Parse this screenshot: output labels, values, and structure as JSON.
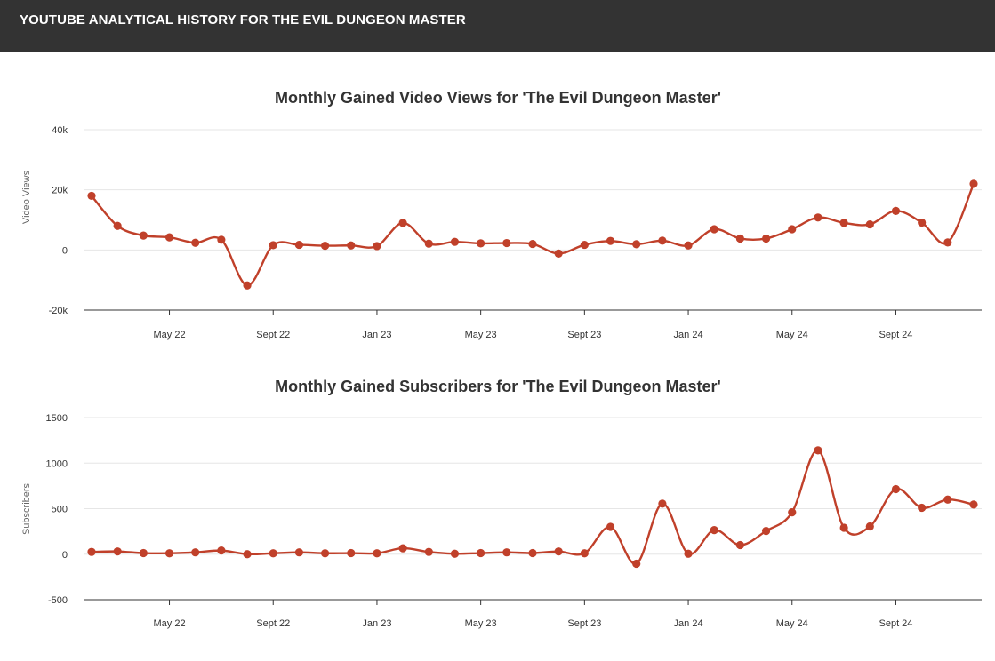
{
  "header": {
    "title": "YOUTUBE ANALYTICAL HISTORY FOR THE EVIL DUNGEON MASTER"
  },
  "colors": {
    "header_bg": "#333333",
    "series": "#c0402a",
    "grid": "#e6e6e6",
    "axis": "#333333"
  },
  "chart_data": [
    {
      "type": "line",
      "title": "Monthly Gained Video Views for 'The Evil Dungeon Master'",
      "xlabel": "",
      "ylabel": "Video Views",
      "ylim": [
        -20000,
        40000
      ],
      "yticks": [
        -20000,
        0,
        20000,
        40000
      ],
      "ytick_labels": [
        "-20k",
        "0",
        "20k",
        "40k"
      ],
      "xtick_labels": [
        "May 22",
        "Sept 22",
        "Jan 23",
        "May 23",
        "Sept 23",
        "Jan 24",
        "May 24",
        "Sept 24"
      ],
      "xtick_months": [
        "2022-05",
        "2022-09",
        "2023-01",
        "2023-05",
        "2023-09",
        "2024-01",
        "2024-05",
        "2024-09"
      ],
      "grid": true,
      "legend": "none",
      "x": [
        "2022-02",
        "2022-03",
        "2022-04",
        "2022-05",
        "2022-06",
        "2022-07",
        "2022-08",
        "2022-09",
        "2022-10",
        "2022-11",
        "2022-12",
        "2023-01",
        "2023-02",
        "2023-03",
        "2023-04",
        "2023-05",
        "2023-06",
        "2023-07",
        "2023-08",
        "2023-09",
        "2023-10",
        "2023-11",
        "2023-12",
        "2024-01",
        "2024-02",
        "2024-03",
        "2024-04",
        "2024-05",
        "2024-06",
        "2024-07",
        "2024-08",
        "2024-09",
        "2024-10",
        "2024-11",
        "2024-12"
      ],
      "values": [
        18000,
        8000,
        4800,
        4200,
        2400,
        3400,
        -11800,
        1600,
        1700,
        1400,
        1500,
        1300,
        9000,
        2100,
        2700,
        2200,
        2300,
        2000,
        -1200,
        1700,
        3000,
        1900,
        3100,
        1500,
        6900,
        3800,
        3800,
        6900,
        10800,
        9000,
        8500,
        13000,
        9100,
        2500,
        22000
      ]
    },
    {
      "type": "line",
      "title": "Monthly Gained Subscribers for 'The Evil Dungeon Master'",
      "xlabel": "",
      "ylabel": "Subscribers",
      "ylim": [
        -500,
        1500
      ],
      "yticks": [
        -500,
        0,
        500,
        1000,
        1500
      ],
      "ytick_labels": [
        "-500",
        "0",
        "500",
        "1000",
        "1500"
      ],
      "xtick_labels": [
        "May 22",
        "Sept 22",
        "Jan 23",
        "May 23",
        "Sept 23",
        "Jan 24",
        "May 24",
        "Sept 24"
      ],
      "xtick_months": [
        "2022-05",
        "2022-09",
        "2023-01",
        "2023-05",
        "2023-09",
        "2024-01",
        "2024-05",
        "2024-09"
      ],
      "grid": true,
      "legend": "none",
      "x": [
        "2022-02",
        "2022-03",
        "2022-04",
        "2022-05",
        "2022-06",
        "2022-07",
        "2022-08",
        "2022-09",
        "2022-10",
        "2022-11",
        "2022-12",
        "2023-01",
        "2023-02",
        "2023-03",
        "2023-04",
        "2023-05",
        "2023-06",
        "2023-07",
        "2023-08",
        "2023-09",
        "2023-10",
        "2023-11",
        "2023-12",
        "2024-01",
        "2024-02",
        "2024-03",
        "2024-04",
        "2024-05",
        "2024-06",
        "2024-07",
        "2024-08",
        "2024-09",
        "2024-10",
        "2024-11",
        "2024-12"
      ],
      "values": [
        25,
        30,
        12,
        10,
        20,
        40,
        0,
        10,
        20,
        10,
        12,
        10,
        65,
        25,
        5,
        12,
        20,
        12,
        30,
        10,
        300,
        -105,
        555,
        5,
        265,
        100,
        255,
        460,
        1140,
        290,
        305,
        715,
        510,
        600,
        545
      ]
    }
  ]
}
